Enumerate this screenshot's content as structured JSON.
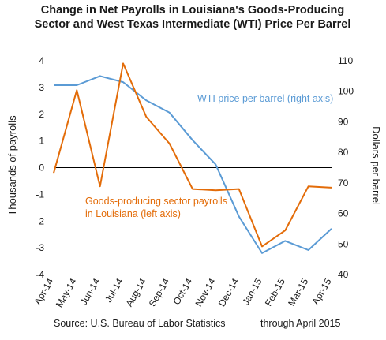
{
  "chart_data": {
    "type": "line",
    "title": [
      "Change in Net Payrolls in Louisiana's Goods-Producing",
      "Sector and West Texas Intermediate (WTI) Price Per Barrel"
    ],
    "categories": [
      "Apr-14",
      "May-14",
      "Jun-14",
      "Jul-14",
      "Aug-14",
      "Sep-14",
      "Oct-14",
      "Nov-14",
      "Dec-14",
      "Jan-15",
      "Feb-15",
      "Mar-15",
      "Apr-15"
    ],
    "series": [
      {
        "name": "WTI price per barrel (right axis)",
        "axis": "right",
        "color": "#5b9bd5",
        "values": [
          102,
          102,
          105,
          103,
          97,
          93,
          84,
          76,
          59,
          47,
          51,
          48,
          55
        ]
      },
      {
        "name": "Goods-producing sector payrolls in Louisiana (left axis)",
        "axis": "left",
        "color": "#e36c09",
        "values": [
          -0.2,
          2.9,
          -0.7,
          3.9,
          1.9,
          0.9,
          -0.8,
          -0.85,
          -0.8,
          -2.95,
          -2.35,
          -0.7,
          -0.75
        ]
      }
    ],
    "y_left": {
      "label": "Thousands of payrolls",
      "ylim": [
        -4,
        4
      ],
      "ticks": [
        4,
        3,
        2,
        1,
        0,
        -1,
        -2,
        -3,
        -4
      ]
    },
    "y_right": {
      "label": "Dollars per barrel",
      "ylim": [
        40,
        110
      ],
      "ticks": [
        110,
        100,
        90,
        80,
        70,
        60,
        50,
        40
      ]
    },
    "zero_line": true,
    "grid": false,
    "annotations": {
      "wti_label": "WTI price per barrel (right axis)",
      "payroll_label_line1": "Goods-producing sector payrolls",
      "payroll_label_line2": "in Louisiana (left axis)"
    },
    "source": "Source: U.S. Bureau of Labor Statistics",
    "period_note": "through April 2015"
  }
}
